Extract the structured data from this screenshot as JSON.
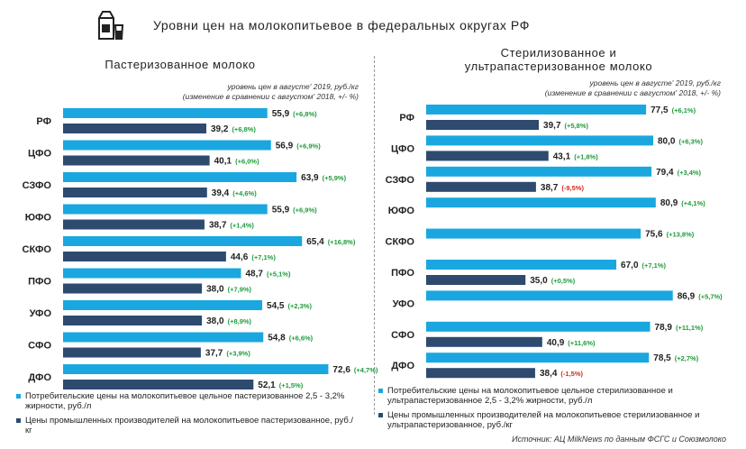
{
  "title": "Уровни цен на молокопитьевое в федеральных округах РФ",
  "source": "Источник: АЦ MilkNews по данным ФСГС и Союзмолоко",
  "colors": {
    "consumer": "#1aa7e0",
    "producer": "#2e4a6f",
    "positive": "#1e9b3a",
    "negative": "#d32a1f"
  },
  "icons": {
    "logo": "milk-carton-and-glass-icon"
  },
  "chart_data": [
    {
      "type": "bar",
      "orientation": "horizontal",
      "title": "Пастеризованное молоко",
      "subtitle_line1": "уровень цен в августе' 2019, руб./кг",
      "subtitle_line2": "(изменение в сравнении с августом' 2018, +/- %)",
      "categories": [
        "РФ",
        "ЦФО",
        "СЗФО",
        "ЮФО",
        "СКФО",
        "ПФО",
        "УФО",
        "СФО",
        "ДФО"
      ],
      "xlim": [
        0,
        90
      ],
      "series": [
        {
          "name": "Потребительские цены на молокопитьевое цельное пастеризованное 2,5 - 3,2% жирности, руб./л",
          "key": "consumer",
          "values": [
            55.9,
            56.9,
            63.9,
            55.9,
            65.4,
            48.7,
            54.5,
            54.8,
            72.6
          ],
          "labels": [
            "55,9",
            "56,9",
            "63,9",
            "55,9",
            "65,4",
            "48,7",
            "54,5",
            "54,8",
            "72,6"
          ],
          "changes": [
            "(+6,8%)",
            "(+6,9%)",
            "(+5,9%)",
            "(+6,9%)",
            "(+16,8%)",
            "(+5,1%)",
            "(+2,3%)",
            "(+6,6%)",
            "(+4,7%)"
          ]
        },
        {
          "name": "Цены промышленных производителей на молокопитьевое пастеризованное, руб./кг",
          "key": "producer",
          "values": [
            39.2,
            40.1,
            39.4,
            38.7,
            44.6,
            38.0,
            38.0,
            37.7,
            52.1
          ],
          "labels": [
            "39,2",
            "40,1",
            "39,4",
            "38,7",
            "44,6",
            "38,0",
            "38,0",
            "37,7",
            "52,1"
          ],
          "changes": [
            "(+6,8%)",
            "(+6,0%)",
            "(+4,6%)",
            "(+1,4%)",
            "(+7,1%)",
            "(+7,9%)",
            "(+8,9%)",
            "(+3,9%)",
            "(+1,5%)"
          ]
        }
      ]
    },
    {
      "type": "bar",
      "orientation": "horizontal",
      "title_line1": "Стерилизованное и",
      "title_line2": "ультрапастеризованное молоко",
      "subtitle_line1": "уровень цен в августе' 2019, руб./кг",
      "subtitle_line2": "(изменение в сравнении с августом' 2018, +/- %)",
      "categories": [
        "РФ",
        "ЦФО",
        "СЗФО",
        "ЮФО",
        "СКФО",
        "ПФО",
        "УФО",
        "СФО",
        "ДФО"
      ],
      "xlim": [
        0,
        100
      ],
      "series": [
        {
          "name": "Потребительские цены на молокопитьевое цельное стерилизованное и ультрапастеризованное 2,5 - 3,2% жирности, руб./л",
          "key": "consumer",
          "values": [
            77.5,
            80.0,
            79.4,
            80.9,
            75.6,
            67.0,
            86.9,
            78.9,
            78.5
          ],
          "labels": [
            "77,5",
            "80,0",
            "79,4",
            "80,9",
            "75,6",
            "67,0",
            "86,9",
            "78,9",
            "78,5"
          ],
          "changes": [
            "(+6,1%)",
            "(+6,3%)",
            "(+3,4%)",
            "(+4,1%)",
            "(+13,8%)",
            "(+7,1%)",
            "(+5,7%)",
            "(+11,1%)",
            "(+2,7%)"
          ]
        },
        {
          "name": "Цены промышленных производителей на молокопитьевое стерилизованное и ультрапастеризованное, руб./кг",
          "key": "producer",
          "values": [
            39.7,
            43.1,
            38.7,
            null,
            null,
            35.0,
            null,
            40.9,
            38.4
          ],
          "labels": [
            "39,7",
            "43,1",
            "38,7",
            "",
            "",
            "35,0",
            "",
            "40,9",
            "38,4"
          ],
          "changes": [
            "(+5,8%)",
            "(+1,8%)",
            "(-9,5%)",
            "",
            "",
            "(+0,5%)",
            "",
            "(+11,6%)",
            "(-1,5%)"
          ]
        }
      ]
    }
  ]
}
